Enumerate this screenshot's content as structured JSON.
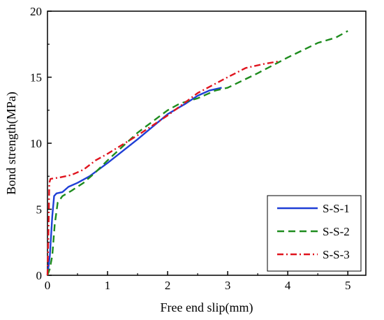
{
  "chart_data": {
    "type": "line",
    "title": "",
    "xlabel": "Free end slip(mm)",
    "ylabel": "Bond strength(MPa)",
    "xlim": [
      0,
      5.3
    ],
    "ylim": [
      0,
      20
    ],
    "xticks": [
      0,
      1,
      2,
      3,
      4,
      5
    ],
    "yticks": [
      0,
      5,
      10,
      15,
      20
    ],
    "grid": false,
    "legend_position": "bottom-right",
    "series": [
      {
        "name": "S-S-1",
        "color": "#1f3fd6",
        "dash": "solid",
        "points": [
          [
            0.0,
            0.0
          ],
          [
            0.04,
            1.5
          ],
          [
            0.08,
            4.5
          ],
          [
            0.11,
            6.0
          ],
          [
            0.15,
            6.2
          ],
          [
            0.25,
            6.3
          ],
          [
            0.35,
            6.7
          ],
          [
            0.5,
            7.0
          ],
          [
            0.7,
            7.5
          ],
          [
            1.0,
            8.5
          ],
          [
            1.5,
            10.3
          ],
          [
            2.0,
            12.2
          ],
          [
            2.3,
            13.0
          ],
          [
            2.5,
            13.6
          ],
          [
            2.7,
            14.0
          ],
          [
            2.9,
            14.2
          ]
        ]
      },
      {
        "name": "S-S-2",
        "color": "#1e8c1e",
        "dash": "dashed",
        "points": [
          [
            0.0,
            0.0
          ],
          [
            0.04,
            0.5
          ],
          [
            0.08,
            1.5
          ],
          [
            0.12,
            3.8
          ],
          [
            0.17,
            5.5
          ],
          [
            0.25,
            6.0
          ],
          [
            0.4,
            6.4
          ],
          [
            0.6,
            7.0
          ],
          [
            0.8,
            7.8
          ],
          [
            1.0,
            8.7
          ],
          [
            1.5,
            10.8
          ],
          [
            2.0,
            12.5
          ],
          [
            2.2,
            13.0
          ],
          [
            2.5,
            13.4
          ],
          [
            2.8,
            14.0
          ],
          [
            3.0,
            14.2
          ],
          [
            3.5,
            15.3
          ],
          [
            4.0,
            16.5
          ],
          [
            4.5,
            17.6
          ],
          [
            4.8,
            18.0
          ],
          [
            5.0,
            18.5
          ]
        ]
      },
      {
        "name": "S-S-3",
        "color": "#e0141e",
        "dash": "dashdot",
        "points": [
          [
            0.0,
            0.0
          ],
          [
            0.02,
            4.0
          ],
          [
            0.03,
            7.0
          ],
          [
            0.05,
            7.3
          ],
          [
            0.2,
            7.4
          ],
          [
            0.4,
            7.6
          ],
          [
            0.6,
            8.0
          ],
          [
            0.8,
            8.7
          ],
          [
            1.0,
            9.2
          ],
          [
            1.5,
            10.6
          ],
          [
            2.0,
            12.1
          ],
          [
            2.5,
            13.8
          ],
          [
            3.0,
            15.0
          ],
          [
            3.3,
            15.7
          ],
          [
            3.6,
            16.0
          ],
          [
            3.85,
            16.2
          ]
        ]
      }
    ]
  }
}
